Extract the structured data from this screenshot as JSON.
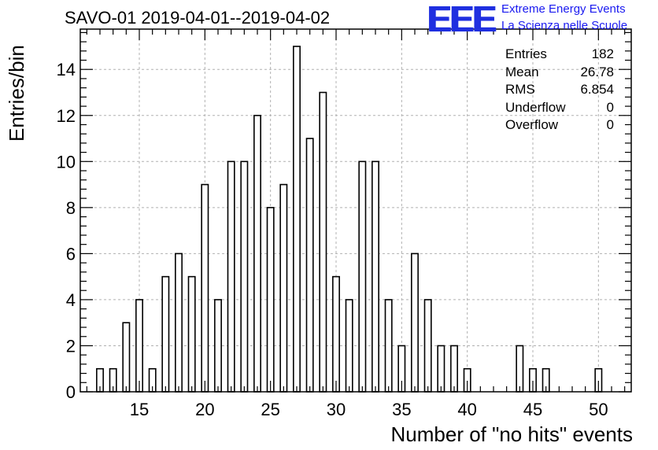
{
  "title": "SAVO-01 2019-04-01--2019-04-02",
  "logo": {
    "text": "EEE",
    "line1": "Extreme Energy Events",
    "line2": "La Scienza nelle Scuole",
    "color": "#1f2fe0"
  },
  "stats": {
    "entries_label": "Entries",
    "entries_value": "182",
    "mean_label": "Mean",
    "mean_value": "26.78",
    "rms_label": "RMS",
    "rms_value": "6.854",
    "underflow_label": "Underflow",
    "underflow_value": "0",
    "overflow_label": "Overflow",
    "overflow_value": "0"
  },
  "chart_data": {
    "type": "bar",
    "xlabel": "Number of \"no hits\" events",
    "ylabel": "Entries/bin",
    "xlim": [
      10.5,
      52.5
    ],
    "ylim": [
      0,
      15.75
    ],
    "x_ticks": [
      15,
      20,
      25,
      30,
      35,
      40,
      45,
      50
    ],
    "y_ticks": [
      0,
      2,
      4,
      6,
      8,
      10,
      12,
      14
    ],
    "grid": true,
    "x": [
      12,
      13,
      14,
      15,
      16,
      17,
      18,
      19,
      20,
      21,
      22,
      23,
      24,
      25,
      26,
      27,
      28,
      29,
      30,
      31,
      32,
      33,
      34,
      35,
      36,
      37,
      38,
      39,
      40,
      41,
      42,
      43,
      44,
      45,
      46,
      47,
      48,
      49,
      50
    ],
    "values": [
      1,
      1,
      3,
      4,
      1,
      5,
      6,
      5,
      9,
      4,
      10,
      10,
      12,
      8,
      9,
      15,
      11,
      13,
      5,
      4,
      10,
      10,
      4,
      2,
      6,
      4,
      2,
      2,
      1,
      0,
      0,
      0,
      2,
      1,
      1,
      0,
      0,
      0,
      1
    ]
  }
}
